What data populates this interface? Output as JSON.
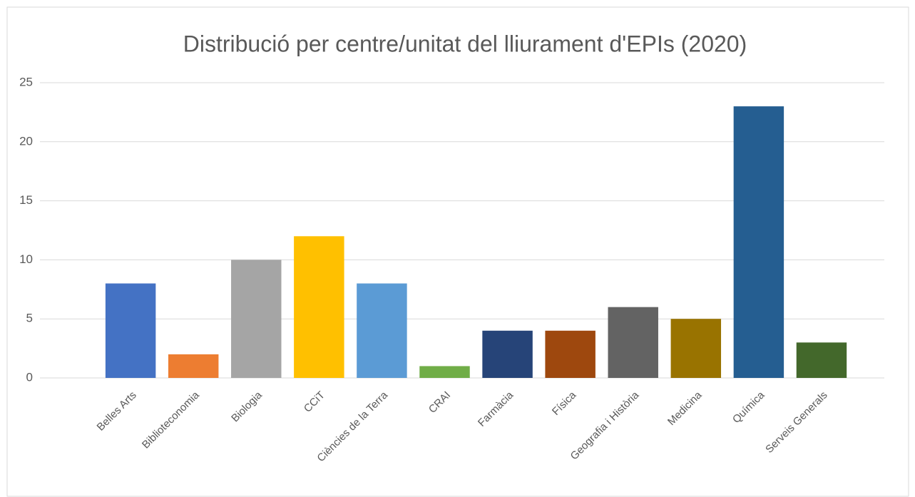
{
  "chart_data": {
    "type": "bar",
    "title": "Distribució per centre/unitat del lliurament d'EPIs (2020)",
    "categories": [
      null,
      "Belles Arts",
      "Biblioteconomia",
      "Biologia",
      "CCiT",
      "Ciències de la Terra",
      "CRAI",
      "Farmàcia",
      "Física",
      "Geografia i Història",
      "Medicina",
      "Química",
      "Serveis Generals"
    ],
    "values": [
      0,
      8,
      2,
      10,
      12,
      8,
      1,
      4,
      4,
      6,
      5,
      23,
      3
    ],
    "colors": [
      "#4472c4",
      "#4472c4",
      "#ed7d31",
      "#a5a5a5",
      "#ffc000",
      "#5b9bd5",
      "#70ad47",
      "#264478",
      "#9e480e",
      "#636363",
      "#997300",
      "#255e91",
      "#43682b"
    ],
    "ylim": [
      0,
      25
    ],
    "yticks": [
      0,
      5,
      10,
      15,
      20,
      25
    ],
    "grid": true
  }
}
